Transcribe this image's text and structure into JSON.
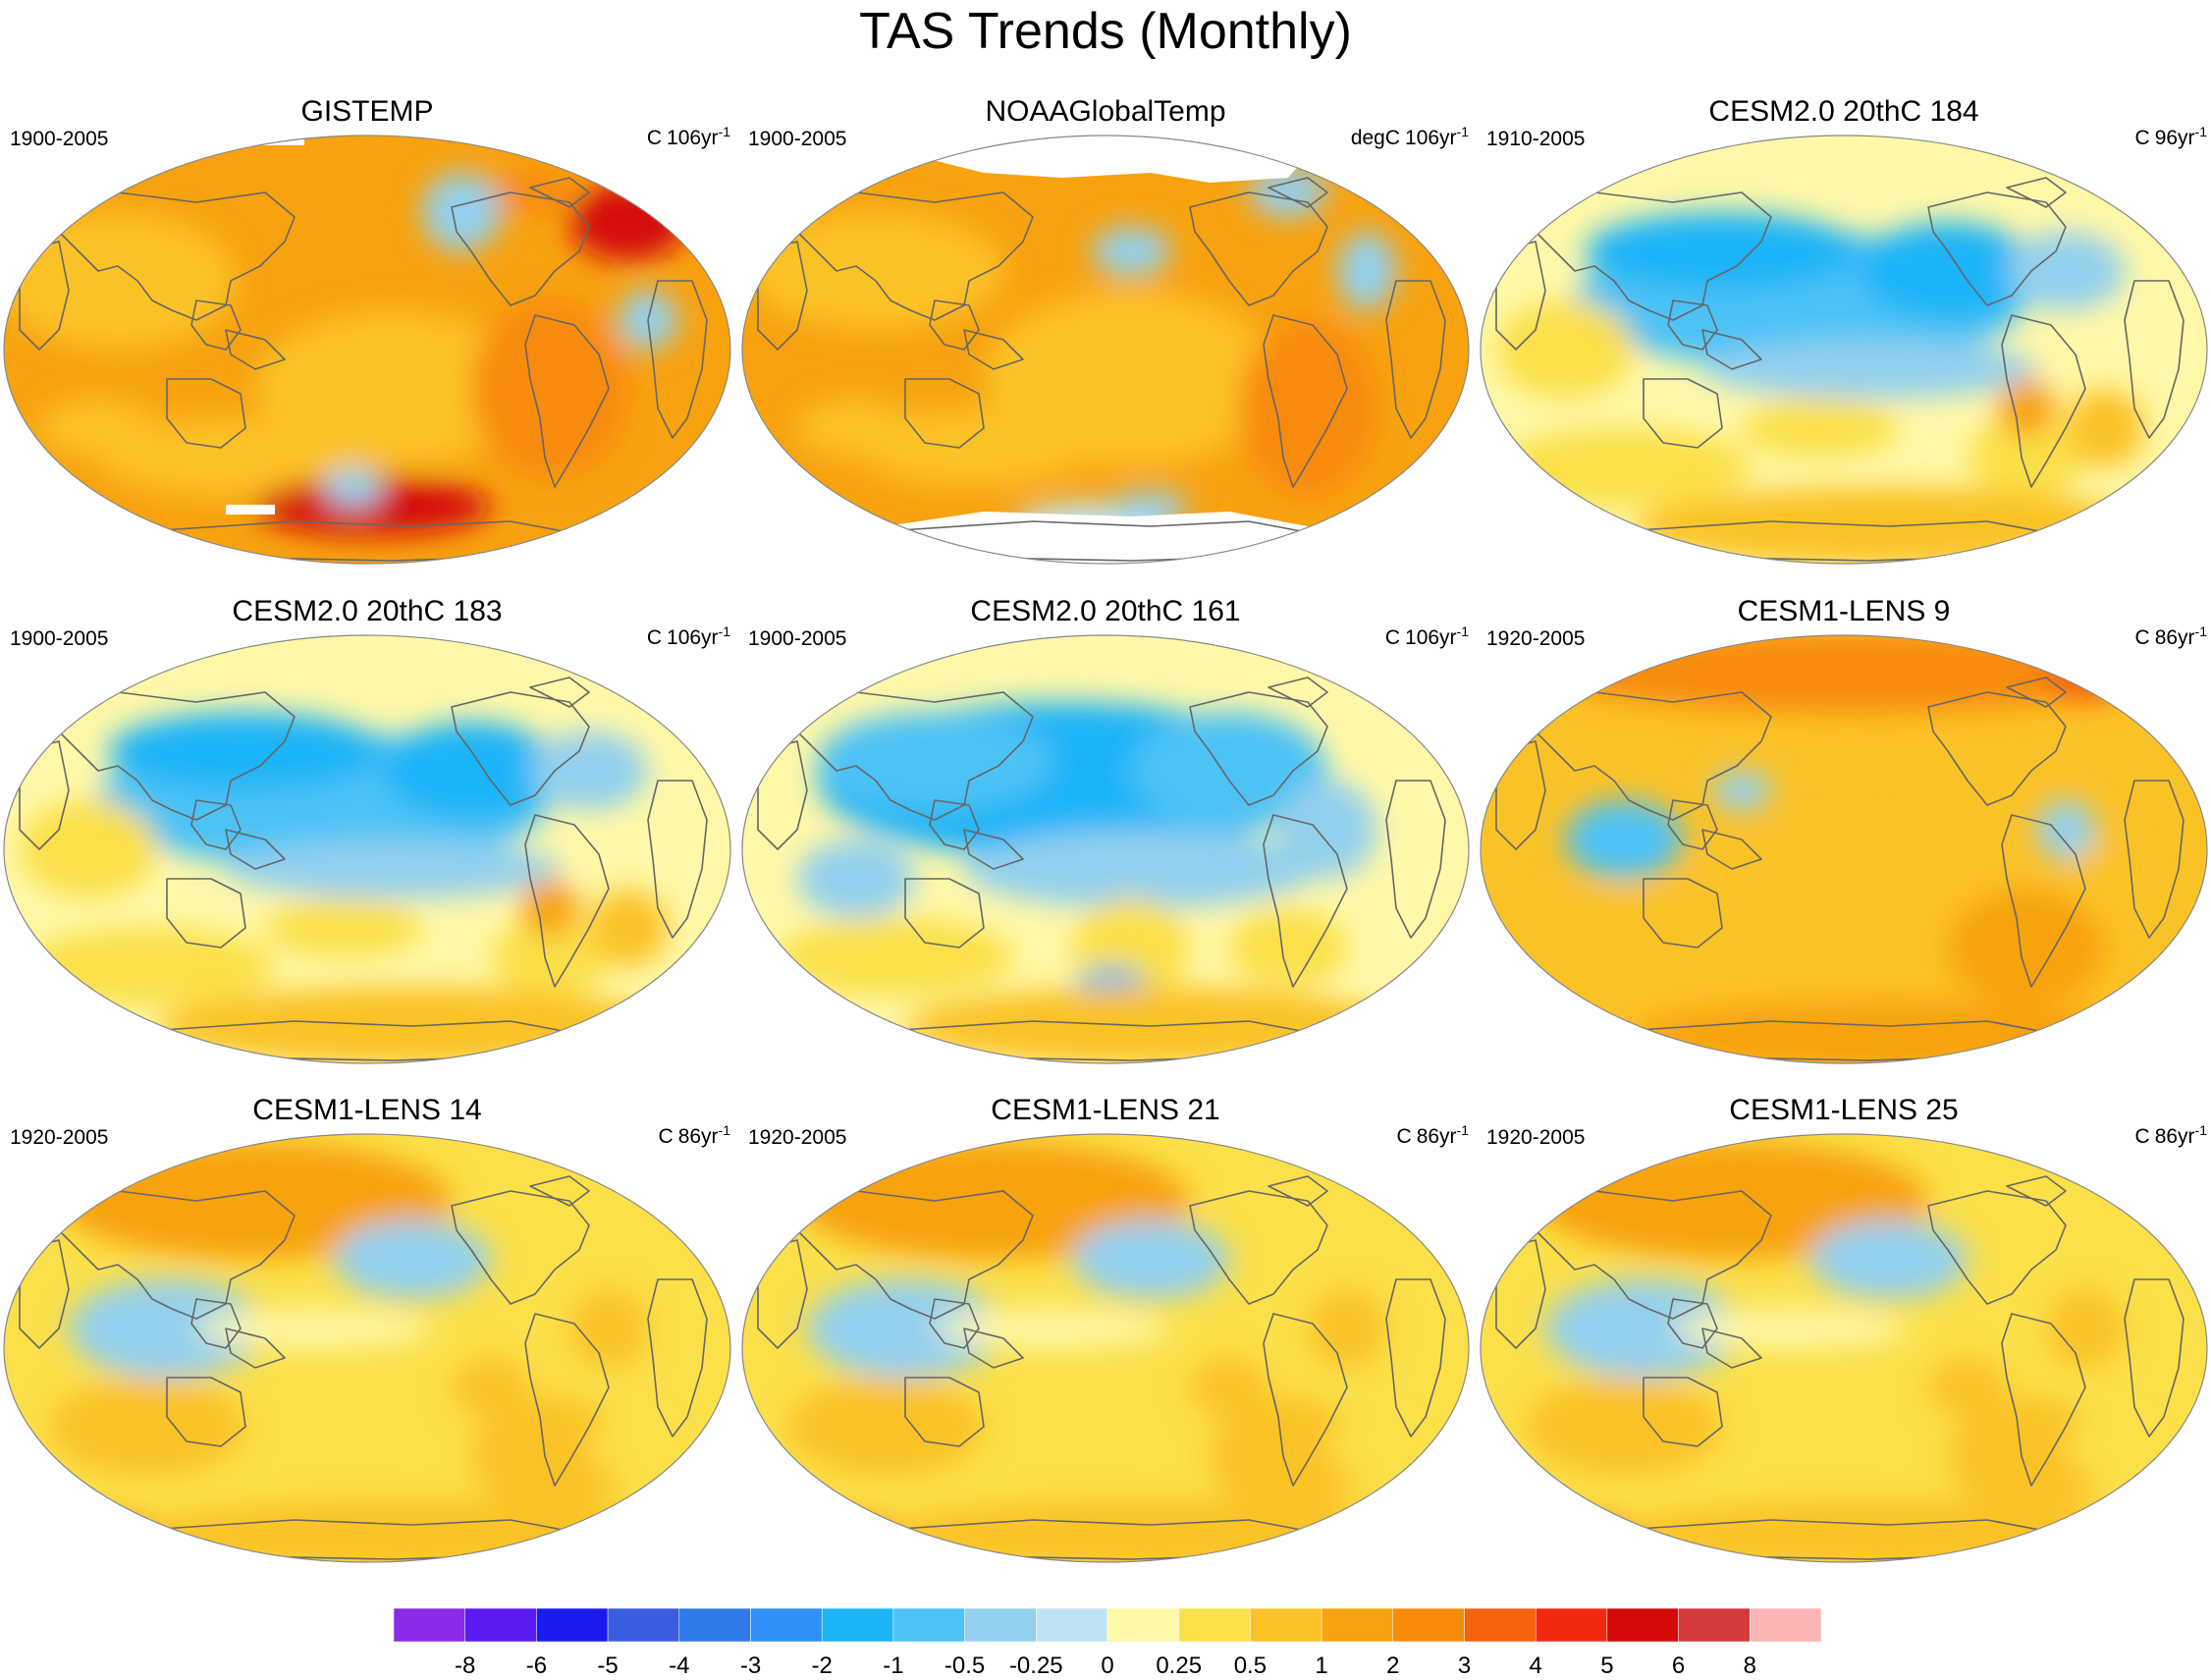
{
  "title": "TAS Trends (Monthly)",
  "panels": [
    {
      "name": "GISTEMP",
      "period": "1900-2005",
      "units": "C",
      "trend_span": "106yr",
      "exponent": "-1",
      "scheme": "obs_gistemp"
    },
    {
      "name": "NOAAGlobalTemp",
      "period": "1900-2005",
      "units": "degC",
      "trend_span": "106yr",
      "exponent": "-1",
      "scheme": "obs_noaa"
    },
    {
      "name": "CESM2.0 20thC 184",
      "period": "1910-2005",
      "units": "C",
      "trend_span": "96yr",
      "exponent": "-1",
      "scheme": "cool_north"
    },
    {
      "name": "CESM2.0 20thC 183",
      "period": "1900-2005",
      "units": "C",
      "trend_span": "106yr",
      "exponent": "-1",
      "scheme": "cool_north"
    },
    {
      "name": "CESM2.0 20thC 161",
      "period": "1900-2005",
      "units": "C",
      "trend_span": "106yr",
      "exponent": "-1",
      "scheme": "cool_strong"
    },
    {
      "name": "CESM1-LENS 9",
      "period": "1920-2005",
      "units": "C",
      "trend_span": "86yr",
      "exponent": "-1",
      "scheme": "warm"
    },
    {
      "name": "CESM1-LENS 14",
      "period": "1920-2005",
      "units": "C",
      "trend_span": "86yr",
      "exponent": "-1",
      "scheme": "warm_mix"
    },
    {
      "name": "CESM1-LENS 21",
      "period": "1920-2005",
      "units": "C",
      "trend_span": "86yr",
      "exponent": "-1",
      "scheme": "warm_mix"
    },
    {
      "name": "CESM1-LENS 25",
      "period": "1920-2005",
      "units": "C",
      "trend_span": "86yr",
      "exponent": "-1",
      "scheme": "warm_mix"
    }
  ],
  "colorbar": {
    "labels": [
      "-8",
      "-6",
      "-5",
      "-4",
      "-3",
      "-2",
      "-1",
      "-0.5",
      "-0.25",
      "0",
      "0.25",
      "0.5",
      "1",
      "2",
      "3",
      "4",
      "5",
      "6",
      "8"
    ],
    "colors": [
      "#8a2be8",
      "#5a1af0",
      "#1a1aee",
      "#3a5ce0",
      "#2f7ae8",
      "#2f90f5",
      "#1ab4f8",
      "#4dc2f5",
      "#93d0ee",
      "#bfe3f3",
      "#fff8a8",
      "#fbe04a",
      "#fbc227",
      "#f8a20f",
      "#f88a0a",
      "#f5620e",
      "#f0280f",
      "#d40a0a",
      "#d43a3a",
      "#fcb4b4"
    ]
  },
  "map_palette": {
    "ocean": "#ffffff",
    "land_outline": "#666666",
    "missing": "#ffffff"
  }
}
